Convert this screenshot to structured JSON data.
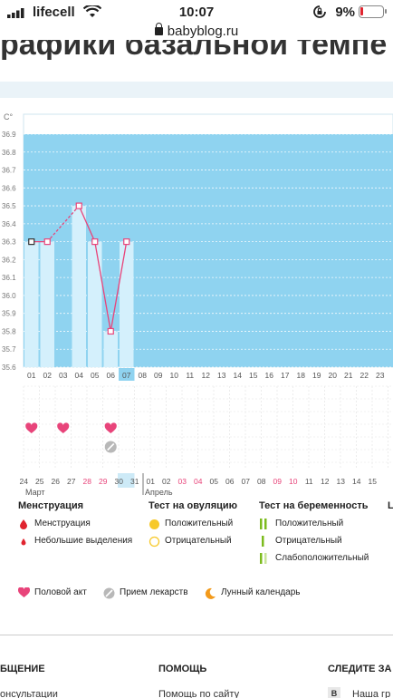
{
  "status_bar": {
    "carrier": "lifecell",
    "time": "10:07",
    "battery": "9%"
  },
  "browser": {
    "url": "babyblog.ru"
  },
  "page": {
    "heading": "рафики базальной темпе"
  },
  "chart_data": {
    "type": "bar",
    "y_unit": "C°",
    "ylim": [
      35.6,
      36.9
    ],
    "y_ticks": [
      "36.9",
      "36.8",
      "36.7",
      "36.6",
      "36.5",
      "36.4",
      "36.3",
      "36.2",
      "36.1",
      "36.0",
      "35.9",
      "35.8",
      "35.7",
      "35.6"
    ],
    "cycle_days": [
      "01",
      "02",
      "03",
      "04",
      "05",
      "06",
      "07",
      "08",
      "09",
      "10",
      "11",
      "12",
      "13",
      "14",
      "15",
      "16",
      "17",
      "18",
      "19",
      "20",
      "21",
      "22",
      "23"
    ],
    "current_day": "07",
    "temperatures": [
      36.3,
      36.3,
      null,
      36.5,
      36.3,
      35.8,
      36.3
    ],
    "dates": [
      "24",
      "25",
      "26",
      "27",
      "28",
      "29",
      "30",
      "31",
      "01",
      "02",
      "03",
      "04",
      "05",
      "06",
      "07",
      "08",
      "09",
      "10",
      "11",
      "12",
      "13",
      "14",
      "15"
    ],
    "weekend_dates": [
      4,
      5,
      10,
      11,
      16,
      17
    ],
    "selected_date_index": 6,
    "intercourse_days": [
      0,
      2,
      5
    ],
    "medication_days": [
      5
    ],
    "months": [
      "Март",
      "Апрель"
    ]
  },
  "legend": {
    "menstruation": {
      "title": "Менструация",
      "items": [
        "Менструация",
        "Небольшие выделения"
      ]
    },
    "ovulation": {
      "title": "Тест на овуляцию",
      "items": [
        "Положительный",
        "Отрицательный"
      ]
    },
    "pregnancy": {
      "title": "Тест на беременность",
      "items": [
        "Положительный",
        "Отрицательный",
        "Слабоположительный"
      ]
    },
    "extra": [
      "Половой акт",
      "Прием лекарств",
      "Лунный календарь"
    ],
    "cut_title": "L"
  },
  "footer": {
    "col1_title": "БЩЕНИЕ",
    "col1_link": "онсультации",
    "col2_title": "ПОМОЩЬ",
    "col2_link": "Помощь по сайту",
    "col3_title": "СЛЕДИТЕ ЗА Н",
    "col3_link": "Наша гр"
  },
  "colors": {
    "chart_fill": "#8fd3f0",
    "bar": "#d4f0fc",
    "line": "#e8447a",
    "heart": "#e8447a",
    "weekend": "#e8447a"
  }
}
